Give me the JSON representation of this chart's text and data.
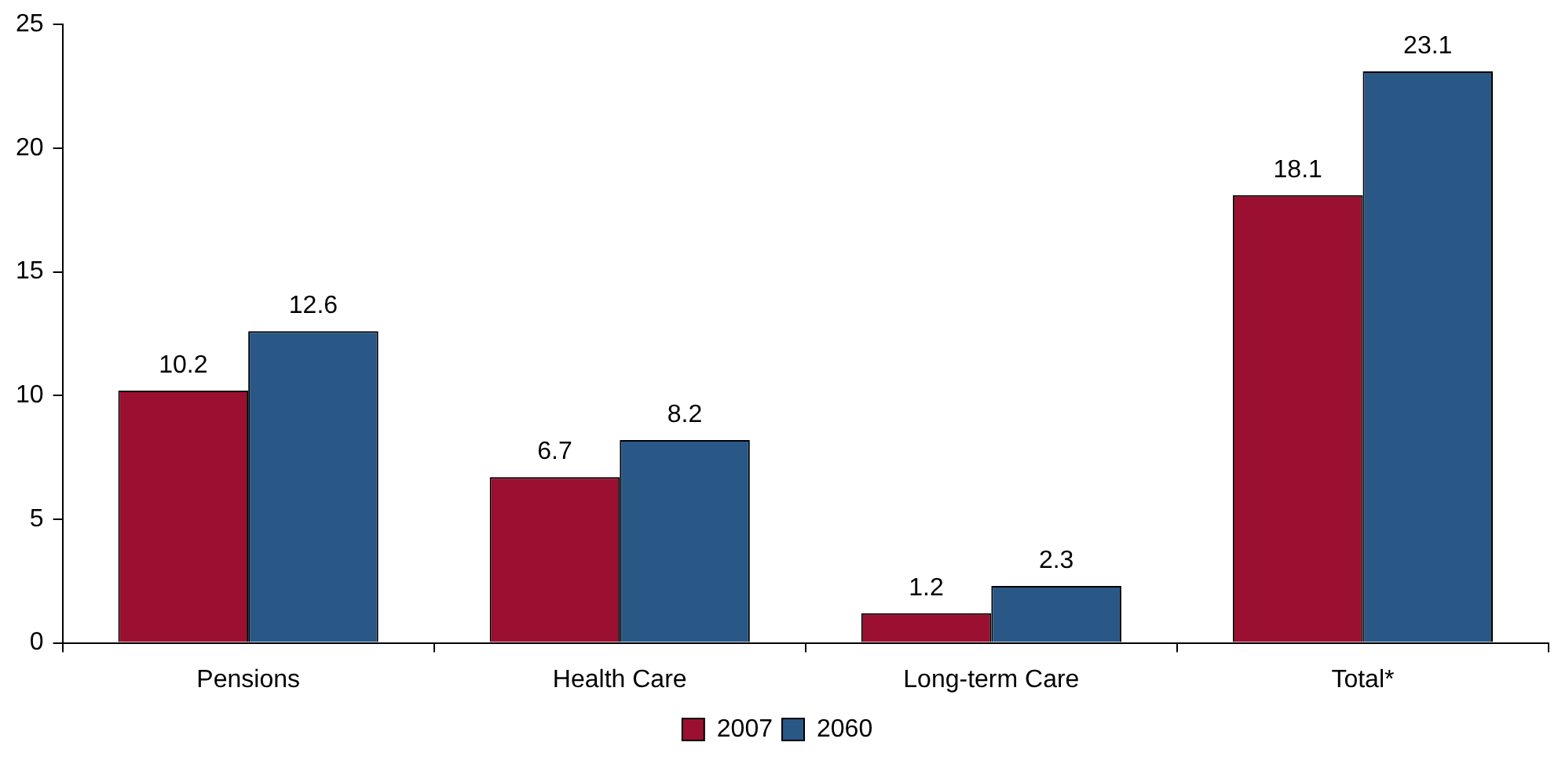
{
  "chart_data": {
    "type": "bar",
    "categories": [
      "Pensions",
      "Health Care",
      "Long-term Care",
      "Total*"
    ],
    "series": [
      {
        "name": "2007",
        "color": "#9b1030",
        "values": [
          10.2,
          6.7,
          1.2,
          18.1
        ]
      },
      {
        "name": "2060",
        "color": "#2a5886",
        "values": [
          12.6,
          8.2,
          2.3,
          23.1
        ]
      }
    ],
    "ylim": [
      0,
      25
    ],
    "yticks": [
      0,
      5,
      10,
      15,
      20,
      25
    ],
    "grid": false,
    "legend": "bottom",
    "data_labels": true
  }
}
